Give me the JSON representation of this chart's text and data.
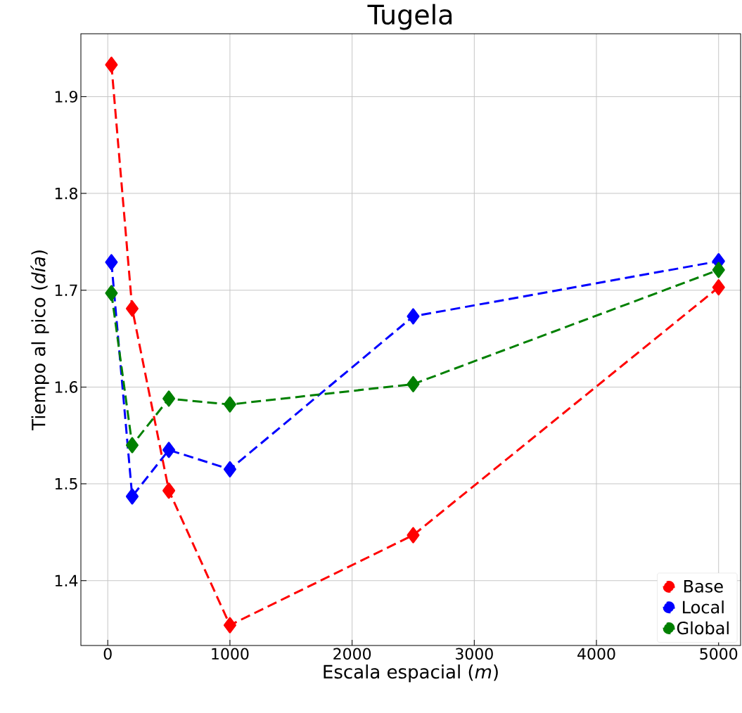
{
  "chart_data": {
    "type": "line",
    "title": "Tugela",
    "xlabel": "Escala espacial (*m*)",
    "ylabel": "Tiempo al pico (*día*)",
    "x": [
      30,
      200,
      500,
      1000,
      2500,
      5000
    ],
    "series": [
      {
        "name": "Base",
        "color": "#ff0000",
        "values": [
          1.933,
          1.681,
          1.493,
          1.354,
          1.447,
          1.703
        ]
      },
      {
        "name": "Local",
        "color": "#0000ff",
        "values": [
          1.729,
          1.487,
          1.535,
          1.515,
          1.673,
          1.73
        ]
      },
      {
        "name": "Global",
        "color": "#008000",
        "values": [
          1.697,
          1.54,
          1.588,
          1.582,
          1.603,
          1.721
        ]
      }
    ],
    "xlim": [
      -220,
      5180
    ],
    "ylim": [
      1.333,
      1.965
    ],
    "xticks": [
      0,
      1000,
      2000,
      3000,
      4000,
      5000
    ],
    "yticks": [
      1.4,
      1.5,
      1.6,
      1.7,
      1.8,
      1.9
    ],
    "grid": true,
    "legend": "bottom right",
    "marker": "diamond",
    "line_style": "dashed"
  }
}
